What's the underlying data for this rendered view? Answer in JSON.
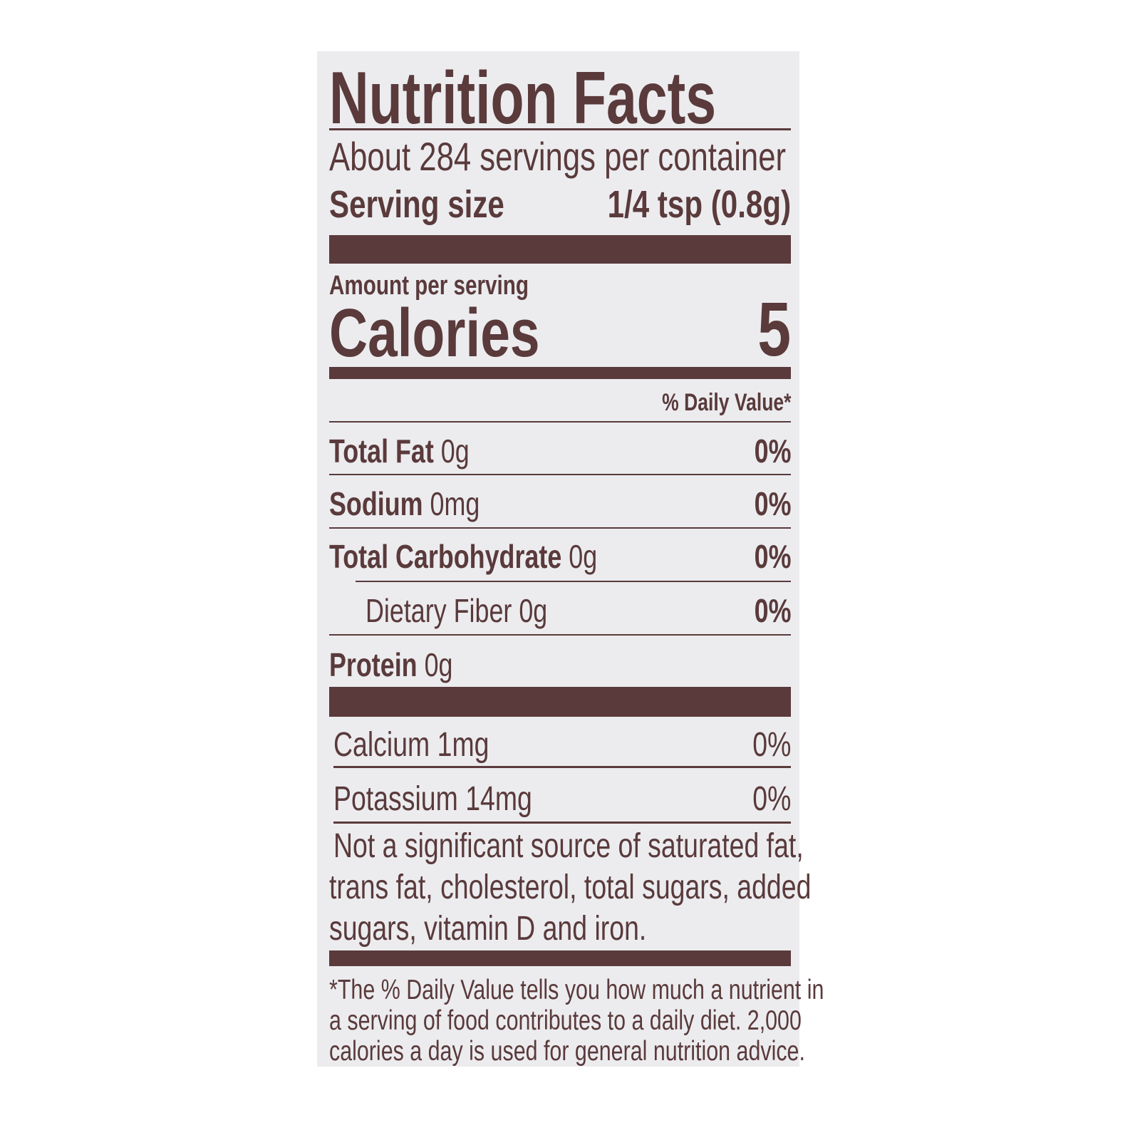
{
  "label": {
    "title": "Nutrition Facts",
    "servings_per_container": "About 284 servings per container",
    "serving_size_label": "Serving size",
    "serving_size_value": "1/4 tsp (0.8g)",
    "amount_per_serving": "Amount per serving",
    "calories_label": "Calories",
    "calories_value": "5",
    "daily_value_header": "% Daily Value*",
    "nutrients": [
      {
        "name": "Total Fat",
        "amount": "0g",
        "dv": "0%"
      },
      {
        "name": "Sodium",
        "amount": "0mg",
        "dv": "0%"
      },
      {
        "name": "Total Carbohydrate",
        "amount": "0g",
        "dv": "0%"
      },
      {
        "name": "Dietary Fiber",
        "amount": "0g",
        "dv": "0%"
      },
      {
        "name": "Protein",
        "amount": "0g",
        "dv": ""
      }
    ],
    "minerals": [
      {
        "text": "Calcium 1mg",
        "dv": "0%"
      },
      {
        "text": "Potassium 14mg",
        "dv": "0%"
      }
    ],
    "not_significant": [
      "Not a significant source of saturated fat,",
      "trans fat, cholesterol, total sugars, added",
      "sugars, vitamin D and iron."
    ],
    "footnote": [
      "*The % Daily Value tells you how much a nutrient in",
      "a serving of food contributes to a daily diet. 2,000",
      "calories a day is used for general nutrition advice."
    ]
  },
  "colors": {
    "ink": "#5a3a3b",
    "panel": "#ececef"
  }
}
